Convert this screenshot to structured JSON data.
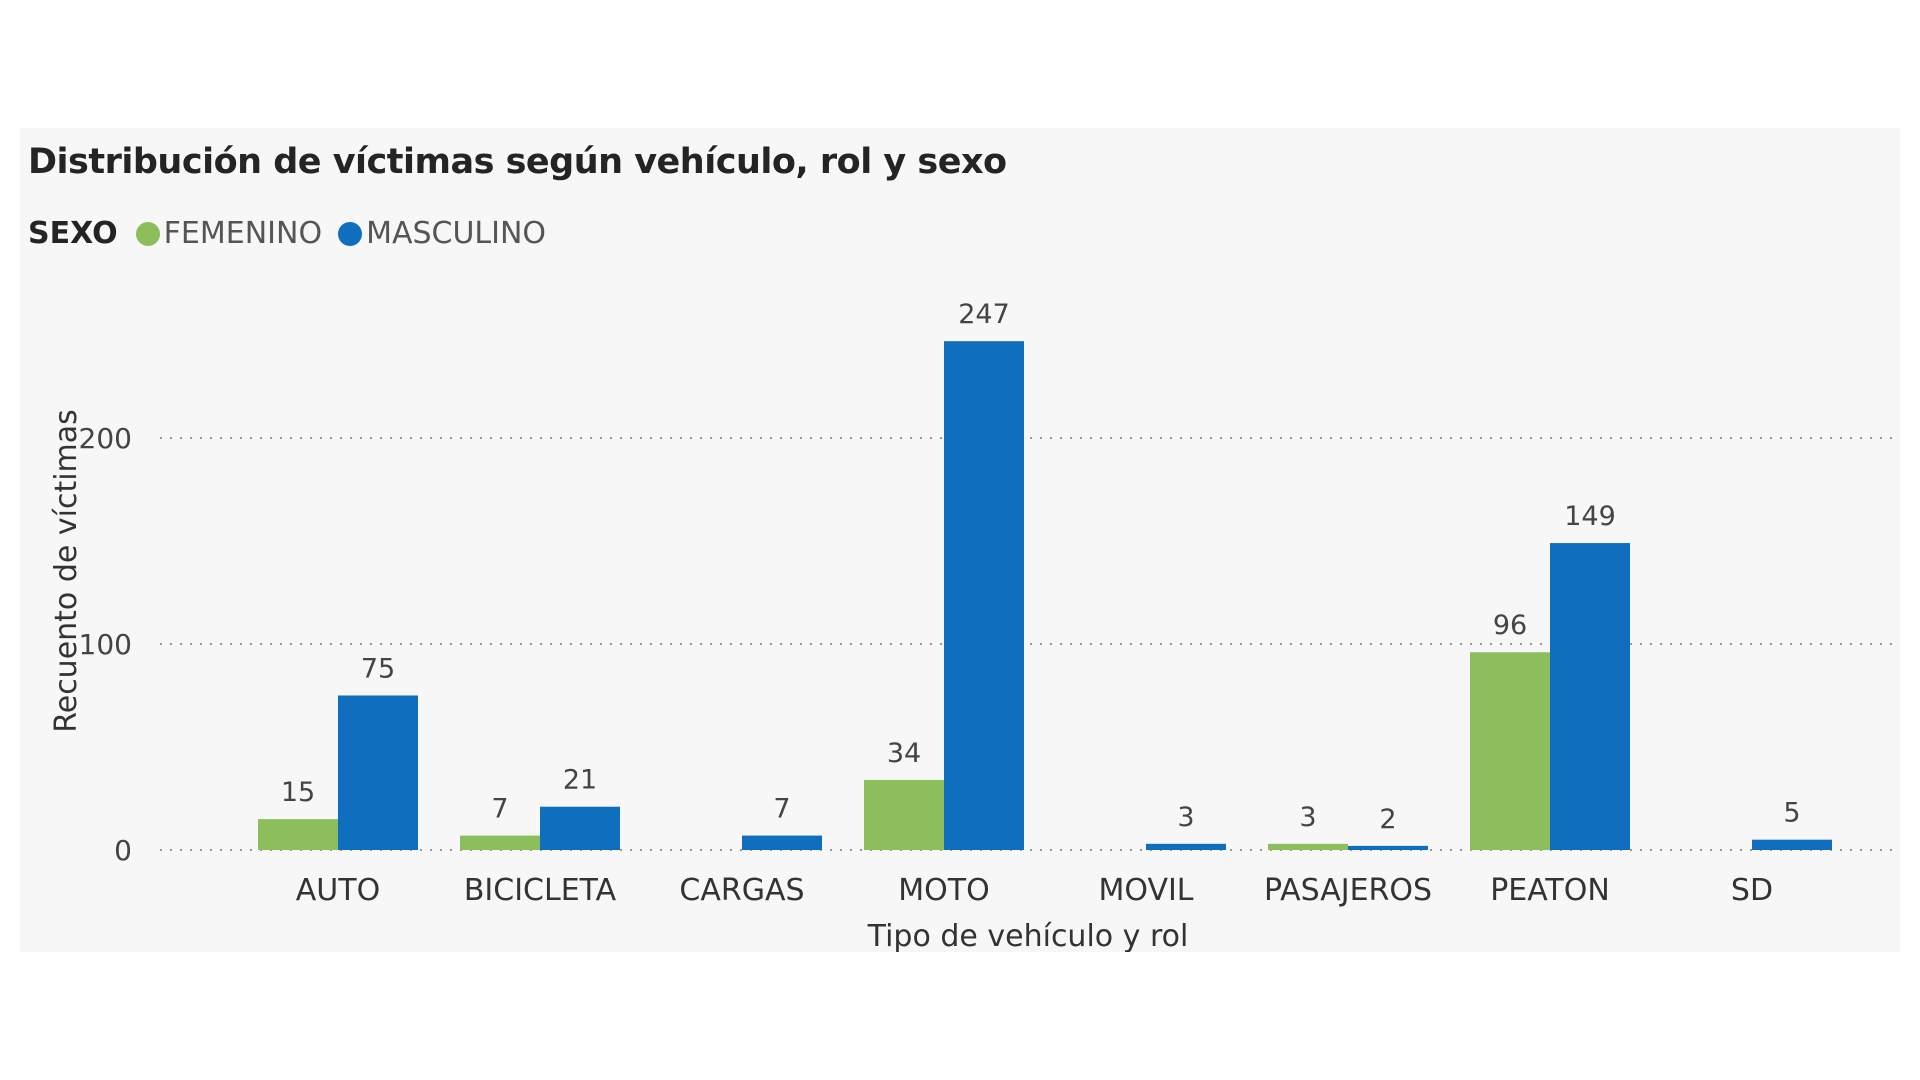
{
  "chart_data": {
    "type": "bar",
    "title": "Distribución de víctimas según vehículo, rol y sexo",
    "legend_title": "SEXO",
    "categories": [
      "AUTO",
      "BICICLETA",
      "CARGAS",
      "MOTO",
      "MOVIL",
      "PASAJEROS",
      "PEATON",
      "SD"
    ],
    "series": [
      {
        "name": "FEMENINO",
        "color": "#8cbf5b",
        "values": [
          15,
          7,
          null,
          34,
          null,
          3,
          96,
          null
        ]
      },
      {
        "name": "MASCULINO",
        "color": "#106ebe",
        "values": [
          75,
          21,
          7,
          247,
          3,
          2,
          149,
          5
        ]
      }
    ],
    "xlabel": "Tipo de vehículo y rol",
    "ylabel": "Recuento de víctimas",
    "yticks": [
      0,
      100,
      200
    ],
    "ylim": [
      0,
      270
    ],
    "grid": true,
    "legend_position": "top-left"
  }
}
